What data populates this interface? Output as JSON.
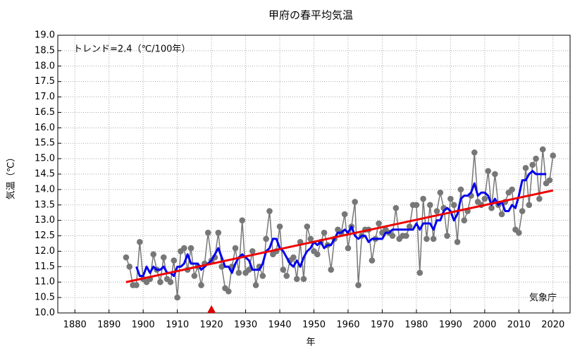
{
  "chart_data": {
    "type": "line",
    "title": "甲府の春平均気温",
    "annotation": "トレンド=2.4（℃/100年）",
    "source": "気象庁",
    "ylabel": "気温（℃）",
    "xlabel": "年",
    "x": [
      1895,
      1896,
      1897,
      1898,
      1899,
      1900,
      1901,
      1902,
      1903,
      1904,
      1905,
      1906,
      1907,
      1908,
      1909,
      1910,
      1911,
      1912,
      1913,
      1914,
      1915,
      1916,
      1917,
      1918,
      1919,
      1920,
      1921,
      1922,
      1923,
      1924,
      1925,
      1926,
      1927,
      1928,
      1929,
      1930,
      1931,
      1932,
      1933,
      1934,
      1935,
      1936,
      1937,
      1938,
      1939,
      1940,
      1941,
      1942,
      1943,
      1944,
      1945,
      1946,
      1947,
      1948,
      1949,
      1950,
      1951,
      1952,
      1953,
      1954,
      1955,
      1956,
      1957,
      1958,
      1959,
      1960,
      1961,
      1962,
      1963,
      1964,
      1965,
      1966,
      1967,
      1968,
      1969,
      1970,
      1971,
      1972,
      1973,
      1974,
      1975,
      1976,
      1977,
      1978,
      1979,
      1980,
      1981,
      1982,
      1983,
      1984,
      1985,
      1986,
      1987,
      1988,
      1989,
      1990,
      1991,
      1992,
      1993,
      1994,
      1995,
      1996,
      1997,
      1998,
      1999,
      2000,
      2001,
      2002,
      2003,
      2004,
      2005,
      2006,
      2007,
      2008,
      2009,
      2010,
      2011,
      2012,
      2013,
      2014,
      2015,
      2016,
      2017,
      2018,
      2019,
      2020
    ],
    "series": [
      {
        "color": "#777777",
        "markers": true,
        "values": [
          11.8,
          11.5,
          10.9,
          10.9,
          12.3,
          11.1,
          11.0,
          11.1,
          11.9,
          11.4,
          11.0,
          11.8,
          11.1,
          11.0,
          11.7,
          10.5,
          12.0,
          12.1,
          11.4,
          12.1,
          11.2,
          11.5,
          10.9,
          11.6,
          12.6,
          11.7,
          11.8,
          12.6,
          11.5,
          10.8,
          10.7,
          11.5,
          12.1,
          11.3,
          13.0,
          11.3,
          11.4,
          12.0,
          10.9,
          11.5,
          11.2,
          12.4,
          13.3,
          11.9,
          12.0,
          12.8,
          11.4,
          11.2,
          11.7,
          11.8,
          11.1,
          12.3,
          11.1,
          12.8,
          12.4,
          12.0,
          11.9,
          12.3,
          12.6,
          12.2,
          11.4,
          12.4,
          12.7,
          12.6,
          13.2,
          12.1,
          12.8,
          13.6,
          10.9,
          12.5,
          12.7,
          12.7,
          11.7,
          12.4,
          12.9,
          12.6,
          12.7,
          12.6,
          12.5,
          13.4,
          12.4,
          12.5,
          12.5,
          12.8,
          13.5,
          13.5,
          11.3,
          13.7,
          12.4,
          13.5,
          12.4,
          13.3,
          13.9,
          13.4,
          12.5,
          13.7,
          13.5,
          12.3,
          14.0,
          13.0,
          13.3,
          13.8,
          15.2,
          13.6,
          13.5,
          13.7,
          14.6,
          13.4,
          14.5,
          13.5,
          13.2,
          13.6,
          13.9,
          14.0,
          12.7,
          12.6,
          13.3,
          14.7,
          13.5,
          14.8,
          15.0,
          13.7,
          15.3,
          14.2,
          14.3,
          15.1
        ]
      },
      {
        "color": "#0000ee",
        "width": 3,
        "values": [
          null,
          null,
          null,
          11.5,
          11.2,
          11.2,
          11.5,
          11.3,
          11.5,
          11.4,
          11.4,
          11.5,
          11.3,
          11.3,
          11.2,
          11.5,
          11.5,
          11.6,
          11.9,
          11.6,
          11.6,
          11.6,
          11.4,
          11.5,
          11.6,
          11.7,
          11.9,
          12.1,
          11.8,
          11.5,
          11.5,
          11.3,
          11.6,
          11.8,
          11.9,
          11.8,
          11.7,
          11.4,
          11.4,
          11.4,
          11.6,
          12.0,
          12.1,
          12.4,
          12.4,
          12.1,
          12.0,
          11.8,
          11.6,
          11.5,
          11.7,
          11.5,
          11.8,
          12.0,
          12.1,
          12.3,
          12.2,
          12.3,
          12.1,
          12.2,
          12.2,
          12.4,
          12.6,
          12.6,
          12.7,
          12.6,
          12.8,
          12.5,
          12.4,
          12.5,
          12.5,
          12.3,
          12.4,
          12.4,
          12.4,
          12.4,
          12.6,
          12.6,
          12.7,
          12.7,
          12.7,
          12.7,
          12.7,
          12.7,
          12.7,
          12.9,
          12.7,
          12.9,
          12.9,
          12.9,
          12.7,
          13.0,
          13.0,
          13.3,
          13.4,
          13.3,
          13.0,
          13.2,
          13.7,
          13.8,
          13.8,
          13.9,
          14.2,
          13.8,
          13.9,
          13.9,
          13.8,
          13.5,
          13.7,
          13.5,
          13.6,
          13.3,
          13.3,
          13.5,
          13.4,
          13.8,
          14.3,
          14.3,
          14.5,
          14.6,
          14.5,
          14.5,
          14.5,
          14.5,
          null,
          null
        ]
      },
      {
        "color": "#ee0000",
        "width": 3,
        "x": [
          1895,
          2020
        ],
        "values": [
          11.0,
          13.97
        ]
      }
    ],
    "event_markers": [
      {
        "x": 1920,
        "color": "#dd0000"
      }
    ],
    "xlim": [
      1875,
      2025
    ],
    "xticks": [
      1880,
      1890,
      1900,
      1910,
      1920,
      1930,
      1940,
      1950,
      1960,
      1970,
      1980,
      1990,
      2000,
      2010,
      2020
    ],
    "ylim": [
      10,
      19
    ],
    "yticks": [
      {
        "value": 10,
        "label": "10.0"
      },
      10.5,
      {
        "value": 11,
        "label": "11.0"
      },
      11.5,
      {
        "value": 12,
        "label": "12.0"
      },
      12.5,
      {
        "value": 13,
        "label": "13.0"
      },
      13.5,
      {
        "value": 14,
        "label": "14.0"
      },
      14.5,
      {
        "value": 15,
        "label": "15.0"
      },
      15.5,
      {
        "value": 16,
        "label": "16.0"
      },
      16.5,
      {
        "value": 17,
        "label": "17.0"
      },
      17.5,
      {
        "value": 18,
        "label": "18.0"
      },
      18.5,
      {
        "value": 19,
        "label": "19.0"
      }
    ],
    "grid": true
  }
}
